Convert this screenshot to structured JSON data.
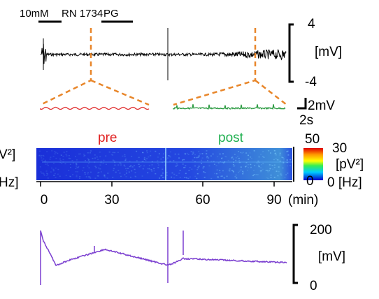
{
  "drug_labels": {
    "concentration": "10mM",
    "drug1": "RN 1734",
    "drug2": "PG"
  },
  "raw_trace": {
    "scale_top": "4",
    "unit": "[mV]",
    "scale_bottom": "-4"
  },
  "zoom_scale": {
    "amplitude": "2mV",
    "time": "2s"
  },
  "spectrogram": {
    "pre_label": "pre",
    "post_label": "post",
    "freq_top": "50",
    "power_top": "30",
    "power_unit": "[pV²]",
    "freq_bottom": "0",
    "power_bottom_unit": "0 [Hz]",
    "left_unit_top": "V²]",
    "left_unit_bottom": "Hz]"
  },
  "time_axis": {
    "ticks": [
      "0",
      "30",
      "60",
      "90"
    ],
    "unit": "(min)"
  },
  "dc_trace": {
    "scale_top": "200",
    "unit": "[mV]",
    "scale_bottom": "0"
  }
}
